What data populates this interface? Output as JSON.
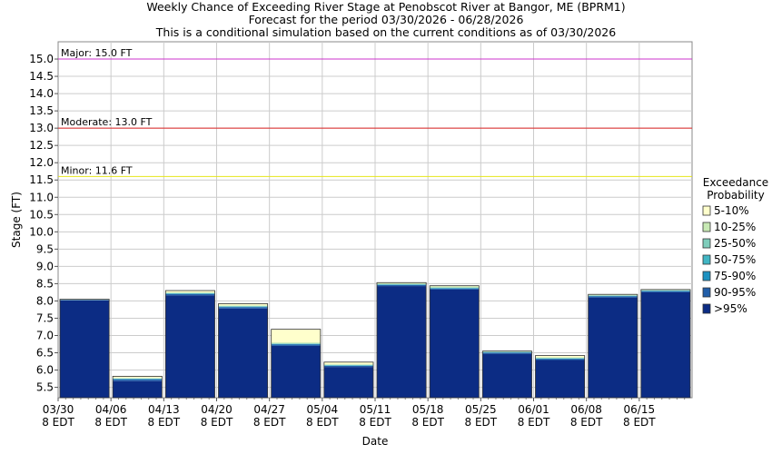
{
  "chart_data": {
    "type": "bar",
    "title_lines": [
      "Weekly Chance of Exceeding River Stage at Penobscot River at Bangor, ME (BPRM1)",
      "Forecast for the period 03/30/2026 - 06/28/2026",
      "This is a conditional simulation based on the current conditions as of 03/30/2026"
    ],
    "xlabel": "Date",
    "ylabel": "Stage (FT)",
    "ylim": [
      5.2,
      15.5
    ],
    "y_ticks": [
      "5.5",
      "6.0",
      "6.5",
      "7.0",
      "7.5",
      "8.0",
      "8.5",
      "9.0",
      "9.5",
      "10.0",
      "10.5",
      "11.0",
      "11.5",
      "12.0",
      "12.5",
      "13.0",
      "13.5",
      "14.0",
      "14.5",
      "15.0"
    ],
    "x_ticks": [
      {
        "date": "03/30",
        "sub": "8 EDT"
      },
      {
        "date": "04/06",
        "sub": "8 EDT"
      },
      {
        "date": "04/13",
        "sub": "8 EDT"
      },
      {
        "date": "04/20",
        "sub": "8 EDT"
      },
      {
        "date": "04/27",
        "sub": "8 EDT"
      },
      {
        "date": "05/04",
        "sub": "8 EDT"
      },
      {
        "date": "05/11",
        "sub": "8 EDT"
      },
      {
        "date": "05/18",
        "sub": "8 EDT"
      },
      {
        "date": "05/25",
        "sub": "8 EDT"
      },
      {
        "date": "06/01",
        "sub": "8 EDT"
      },
      {
        "date": "06/08",
        "sub": "8 EDT"
      },
      {
        "date": "06/15",
        "sub": "8 EDT"
      }
    ],
    "thresholds": [
      {
        "label": "Major: 15.0 FT",
        "value": 15.0,
        "color": "#cc33cc"
      },
      {
        "label": "Moderate: 13.0 FT",
        "value": 13.0,
        "color": "#dd2222"
      },
      {
        "label": "Minor: 11.6 FT",
        "value": 11.6,
        "color": "#e6e61a"
      }
    ],
    "legend_title": [
      "Exceedance",
      "Probability"
    ],
    "series": [
      {
        "name": "5-10%",
        "color": "#ffffcc"
      },
      {
        "name": "10-25%",
        "color": "#c7e9b4"
      },
      {
        "name": "25-50%",
        "color": "#7fcdbb"
      },
      {
        "name": "50-75%",
        "color": "#41b6c4"
      },
      {
        "name": "75-90%",
        "color": "#1d91c0"
      },
      {
        "name": "90-95%",
        "color": "#225ea8"
      },
      {
        "name": ">95%",
        "color": "#0c2c84"
      }
    ],
    "bars": [
      {
        "week": "03/30",
        "stack": [
          8.02,
          8.03,
          8.03,
          8.03,
          8.04,
          8.04,
          8.05
        ]
      },
      {
        "week": "04/06",
        "stack": [
          5.68,
          5.73,
          5.74,
          5.75,
          5.76,
          5.77,
          5.82
        ]
      },
      {
        "week": "04/13",
        "stack": [
          8.16,
          8.2,
          8.21,
          8.22,
          8.23,
          8.25,
          8.3
        ]
      },
      {
        "week": "04/20",
        "stack": [
          7.78,
          7.82,
          7.83,
          7.84,
          7.85,
          7.87,
          7.92
        ]
      },
      {
        "week": "04/27",
        "stack": [
          6.7,
          6.74,
          6.75,
          6.76,
          6.77,
          6.8,
          7.18
        ]
      },
      {
        "week": "05/04",
        "stack": [
          6.09,
          6.12,
          6.13,
          6.14,
          6.15,
          6.17,
          6.23
        ]
      },
      {
        "week": "05/11",
        "stack": [
          8.43,
          8.46,
          8.47,
          8.48,
          8.49,
          8.52,
          8.53
        ]
      },
      {
        "week": "05/18",
        "stack": [
          8.33,
          8.36,
          8.37,
          8.38,
          8.39,
          8.42,
          8.44
        ]
      },
      {
        "week": "05/25",
        "stack": [
          6.47,
          6.5,
          6.51,
          6.52,
          6.53,
          6.54,
          6.55
        ]
      },
      {
        "week": "06/01",
        "stack": [
          6.29,
          6.32,
          6.33,
          6.34,
          6.35,
          6.37,
          6.42
        ]
      },
      {
        "week": "06/08",
        "stack": [
          8.1,
          8.13,
          8.14,
          8.15,
          8.16,
          8.18,
          8.19
        ]
      },
      {
        "week": "06/15",
        "stack": [
          8.25,
          8.28,
          8.29,
          8.3,
          8.31,
          8.32,
          8.33
        ]
      }
    ]
  }
}
